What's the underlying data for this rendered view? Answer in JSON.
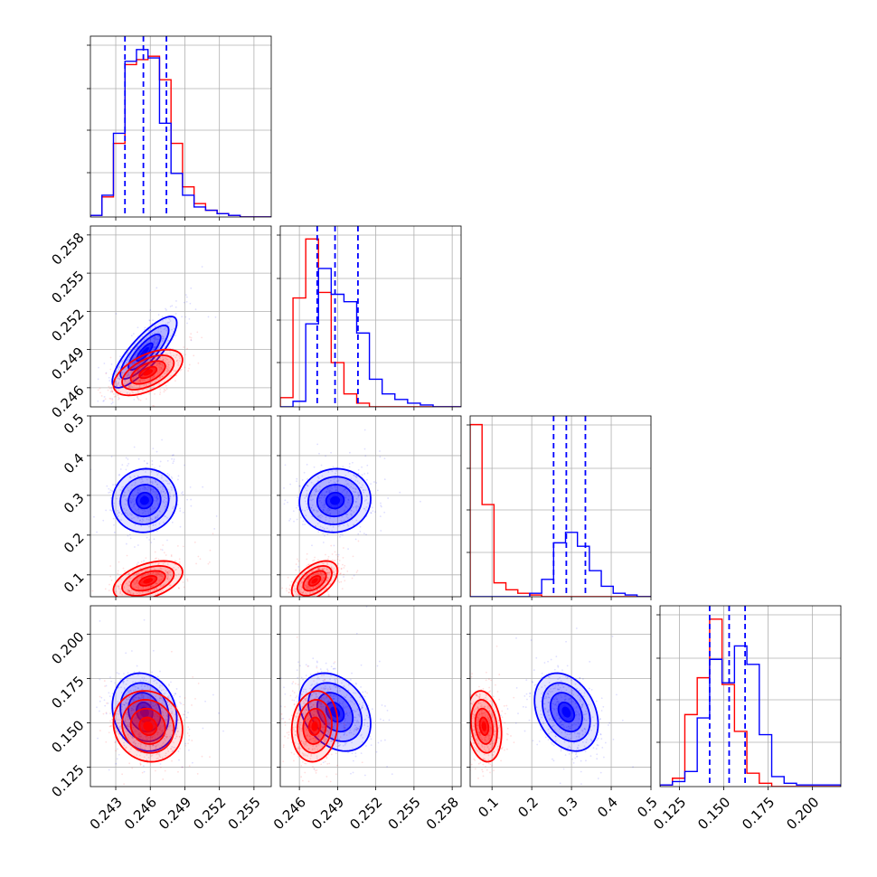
{
  "chart_data": {
    "type": "corner",
    "grid": true,
    "series": [
      {
        "color": "#0000ff"
      },
      {
        "color": "#ff0000"
      }
    ],
    "params": [
      {
        "range": [
          0.2408,
          0.2565
        ],
        "ticks": [
          0.243,
          0.246,
          0.249,
          0.252,
          0.255
        ],
        "tick_labels": [
          "0.243",
          "0.246",
          "0.249",
          "0.252",
          "0.255"
        ]
      },
      {
        "range": [
          0.2445,
          0.2587
        ],
        "ticks": [
          0.246,
          0.249,
          0.252,
          0.255,
          0.258
        ],
        "tick_labels": [
          "0.246",
          "0.249",
          "0.252",
          "0.255",
          "0.258"
        ]
      },
      {
        "range": [
          0.045,
          0.5
        ],
        "ticks": [
          0.1,
          0.2,
          0.3,
          0.4,
          0.5
        ],
        "tick_labels": [
          "0.1",
          "0.2",
          "0.3",
          "0.4",
          "0.5"
        ]
      },
      {
        "range": [
          0.114,
          0.216
        ],
        "ticks": [
          0.125,
          0.15,
          0.175,
          0.2
        ],
        "tick_labels": [
          "0.125",
          "0.150",
          "0.175",
          "0.200"
        ]
      }
    ],
    "quantiles": {
      "blue": [
        [
          0.2438,
          0.2454,
          0.2474
        ],
        [
          0.2474,
          0.2488,
          0.2506
        ],
        [
          0.255,
          0.287,
          0.335
        ],
        [
          0.142,
          0.153,
          0.162
        ]
      ]
    },
    "histograms": [
      {
        "bins": [
          0.2408,
          0.2418,
          0.2428,
          0.2438,
          0.2448,
          0.2458,
          0.2468,
          0.2478,
          0.2488,
          0.2498,
          0.2508,
          0.2518,
          0.2528,
          0.2538,
          0.2548,
          0.2565
        ],
        "blue": [
          0.01,
          0.13,
          0.5,
          0.93,
          1.0,
          0.95,
          0.56,
          0.26,
          0.13,
          0.06,
          0.04,
          0.02,
          0.01,
          0.0,
          0.0
        ],
        "red": [
          0.01,
          0.12,
          0.44,
          0.91,
          0.94,
          0.96,
          0.82,
          0.44,
          0.18,
          0.08,
          0.04,
          0.02,
          0.01,
          0.0,
          0.0
        ],
        "ymax": 1.08
      },
      {
        "bins": [
          0.2445,
          0.2455,
          0.2465,
          0.2475,
          0.2485,
          0.2495,
          0.2505,
          0.2515,
          0.2525,
          0.2535,
          0.2545,
          0.2555,
          0.2565,
          0.2587
        ],
        "blue": [
          0.0,
          0.03,
          0.45,
          0.75,
          0.61,
          0.57,
          0.4,
          0.15,
          0.07,
          0.04,
          0.02,
          0.01,
          0.0
        ],
        "red": [
          0.05,
          0.59,
          0.91,
          0.62,
          0.24,
          0.07,
          0.02,
          0.0,
          0.0,
          0.0,
          0.0,
          0.0,
          0.0
        ],
        "ymax": 0.98
      },
      {
        "bins": [
          0.045,
          0.075,
          0.105,
          0.135,
          0.165,
          0.195,
          0.225,
          0.255,
          0.285,
          0.315,
          0.345,
          0.375,
          0.405,
          0.435,
          0.465,
          0.5
        ],
        "blue": [
          0.0,
          0.0,
          0.0,
          0.0,
          0.0,
          0.02,
          0.1,
          0.31,
          0.37,
          0.29,
          0.15,
          0.06,
          0.02,
          0.01,
          0.0
        ],
        "red": [
          0.99,
          0.53,
          0.08,
          0.04,
          0.02,
          0.01,
          0.0,
          0.0,
          0.0,
          0.0,
          0.0,
          0.0,
          0.0,
          0.0,
          0.0
        ],
        "ymax": 1.04
      },
      {
        "bins": [
          0.114,
          0.121,
          0.128,
          0.135,
          0.142,
          0.149,
          0.156,
          0.163,
          0.17,
          0.177,
          0.184,
          0.191,
          0.198,
          0.205,
          0.216
        ],
        "blue": [
          0.01,
          0.03,
          0.09,
          0.41,
          0.76,
          0.62,
          0.84,
          0.73,
          0.31,
          0.06,
          0.02,
          0.01,
          0.01,
          0.01
        ],
        "red": [
          0.01,
          0.05,
          0.43,
          0.65,
          1.0,
          0.61,
          0.33,
          0.08,
          0.02,
          0.0,
          0.0,
          0.0,
          0.0,
          0.0
        ],
        "ymax": 1.08
      }
    ],
    "distributions_2d": {
      "blue": [
        {
          "pair": [
            0,
            1
          ],
          "mean": [
            0.2455,
            0.2488
          ],
          "sd": [
            0.0014,
            0.0014
          ],
          "corr": 0.82
        },
        {
          "pair": [
            0,
            2
          ],
          "mean": [
            0.2455,
            0.287
          ],
          "sd": [
            0.0014,
            0.04
          ],
          "corr": 0.05
        },
        {
          "pair": [
            1,
            2
          ],
          "mean": [
            0.2488,
            0.287
          ],
          "sd": [
            0.0014,
            0.04
          ],
          "corr": 0.05
        },
        {
          "pair": [
            0,
            3
          ],
          "mean": [
            0.2455,
            0.156
          ],
          "sd": [
            0.0014,
            0.011
          ],
          "corr": -0.15
        },
        {
          "pair": [
            1,
            3
          ],
          "mean": [
            0.2488,
            0.156
          ],
          "sd": [
            0.0014,
            0.011
          ],
          "corr": -0.3
        },
        {
          "pair": [
            2,
            3
          ],
          "mean": [
            0.287,
            0.156
          ],
          "sd": [
            0.04,
            0.011
          ],
          "corr": -0.3
        }
      ],
      "red": [
        {
          "pair": [
            0,
            1
          ],
          "mean": [
            0.2458,
            0.2472
          ],
          "sd": [
            0.0015,
            0.0009
          ],
          "corr": 0.55
        },
        {
          "pair": [
            0,
            2
          ],
          "mean": [
            0.2458,
            0.085
          ],
          "sd": [
            0.0015,
            0.025
          ],
          "corr": 0.45
        },
        {
          "pair": [
            1,
            2
          ],
          "mean": [
            0.2472,
            0.085
          ],
          "sd": [
            0.0009,
            0.025
          ],
          "corr": 0.5
        },
        {
          "pair": [
            0,
            3
          ],
          "mean": [
            0.2458,
            0.148
          ],
          "sd": [
            0.0015,
            0.01
          ],
          "corr": -0.1
        },
        {
          "pair": [
            1,
            3
          ],
          "mean": [
            0.2472,
            0.148
          ],
          "sd": [
            0.0009,
            0.01
          ],
          "corr": 0.1
        },
        {
          "pair": [
            2,
            3
          ],
          "mean": [
            0.08,
            0.148
          ],
          "sd": [
            0.022,
            0.01
          ],
          "corr": -0.2
        }
      ]
    },
    "contour_levels_sigma": [
      0.5,
      1.0,
      1.5,
      2.0
    ]
  }
}
